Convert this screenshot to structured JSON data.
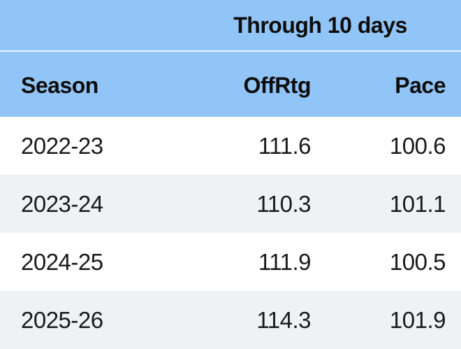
{
  "banner": {
    "title": "Through 10 days"
  },
  "columns": {
    "season": "Season",
    "offrtg": "OffRtg",
    "pace": "Pace"
  },
  "rows": [
    {
      "season": "2022-23",
      "offrtg": "111.6",
      "pace": "100.6"
    },
    {
      "season": "2023-24",
      "offrtg": "110.3",
      "pace": "101.1"
    },
    {
      "season": "2024-25",
      "offrtg": "111.9",
      "pace": "100.5"
    },
    {
      "season": "2025-26",
      "offrtg": "114.3",
      "pace": "101.9"
    }
  ],
  "colors": {
    "header_blue": "#92C5F7",
    "divider_light": "#EAF4FE",
    "row_alt_gray": "#F0F1F2",
    "row_white": "#FFFFFF",
    "text_dark": "#0d0d0d"
  },
  "chart_data": {
    "type": "table",
    "title": "Through 10 days",
    "columns": [
      "Season",
      "OffRtg",
      "Pace"
    ],
    "rows": [
      [
        "2022-23",
        111.6,
        100.6
      ],
      [
        "2023-24",
        110.3,
        101.1
      ],
      [
        "2024-25",
        111.9,
        100.5
      ],
      [
        "2025-26",
        114.3,
        101.9
      ]
    ],
    "layout_hints": {
      "banner_spans": [
        "OffRtg",
        "Pace"
      ],
      "zebra_striping": true,
      "numeric_alignment": "right",
      "last_row_clipped_at_bottom": true
    }
  }
}
